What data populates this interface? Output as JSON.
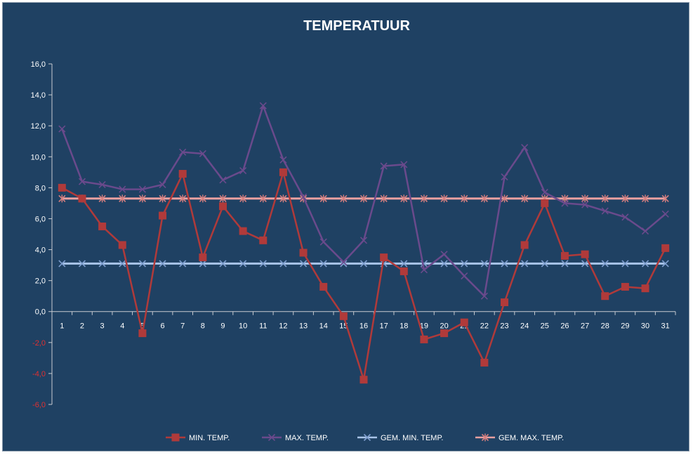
{
  "chart_data": {
    "type": "line",
    "title": "TEMPERATUUR",
    "xlabel": "",
    "ylabel": "",
    "ylim": [
      -6,
      16
    ],
    "yticks": [
      "-6,0",
      "-4,0",
      "-2,0",
      "0,0",
      "2,0",
      "4,0",
      "6,0",
      "8,0",
      "10,0",
      "12,0",
      "14,0",
      "16,0"
    ],
    "categories": [
      "1",
      "2",
      "3",
      "4",
      "5",
      "6",
      "7",
      "8",
      "9",
      "10",
      "11",
      "12",
      "13",
      "14",
      "15",
      "16",
      "17",
      "18",
      "19",
      "20",
      "21",
      "22",
      "23",
      "24",
      "25",
      "26",
      "27",
      "28",
      "29",
      "30",
      "31"
    ],
    "legend_position": "bottom",
    "grid": false,
    "series": [
      {
        "name": "MIN. TEMP.",
        "color": "#b03a3a",
        "marker": "square",
        "values": [
          8.0,
          7.3,
          5.5,
          4.3,
          -1.4,
          6.2,
          8.9,
          3.5,
          6.8,
          5.2,
          4.6,
          9.0,
          3.8,
          1.6,
          -0.3,
          -4.4,
          3.5,
          2.6,
          -1.8,
          -1.4,
          -0.7,
          -3.3,
          0.6,
          4.3,
          7.0,
          3.6,
          3.7,
          1.0,
          1.6,
          1.5,
          4.1
        ]
      },
      {
        "name": "MAX. TEMP.",
        "color": "#6a4a8c",
        "marker": "x",
        "values": [
          11.8,
          8.4,
          8.2,
          7.9,
          7.9,
          8.2,
          10.3,
          10.2,
          8.5,
          9.1,
          13.3,
          9.8,
          7.4,
          4.5,
          3.2,
          4.6,
          9.4,
          9.5,
          2.7,
          3.7,
          2.3,
          1.0,
          8.7,
          10.6,
          7.7,
          7.0,
          6.9,
          6.5,
          6.1,
          5.2,
          6.3
        ]
      },
      {
        "name": "GEM. MIN. TEMP.",
        "color": "#a9c4e8",
        "marker": "x",
        "values": [
          3.1,
          3.1,
          3.1,
          3.1,
          3.1,
          3.1,
          3.1,
          3.1,
          3.1,
          3.1,
          3.1,
          3.1,
          3.1,
          3.1,
          3.1,
          3.1,
          3.1,
          3.1,
          3.1,
          3.1,
          3.1,
          3.1,
          3.1,
          3.1,
          3.1,
          3.1,
          3.1,
          3.1,
          3.1,
          3.1,
          3.1
        ]
      },
      {
        "name": "GEM. MAX. TEMP.",
        "color": "#e8a0a0",
        "marker": "star",
        "values": [
          7.3,
          7.3,
          7.3,
          7.3,
          7.3,
          7.3,
          7.3,
          7.3,
          7.3,
          7.3,
          7.3,
          7.3,
          7.3,
          7.3,
          7.3,
          7.3,
          7.3,
          7.3,
          7.3,
          7.3,
          7.3,
          7.3,
          7.3,
          7.3,
          7.3,
          7.3,
          7.3,
          7.3,
          7.3,
          7.3,
          7.3
        ]
      }
    ]
  }
}
